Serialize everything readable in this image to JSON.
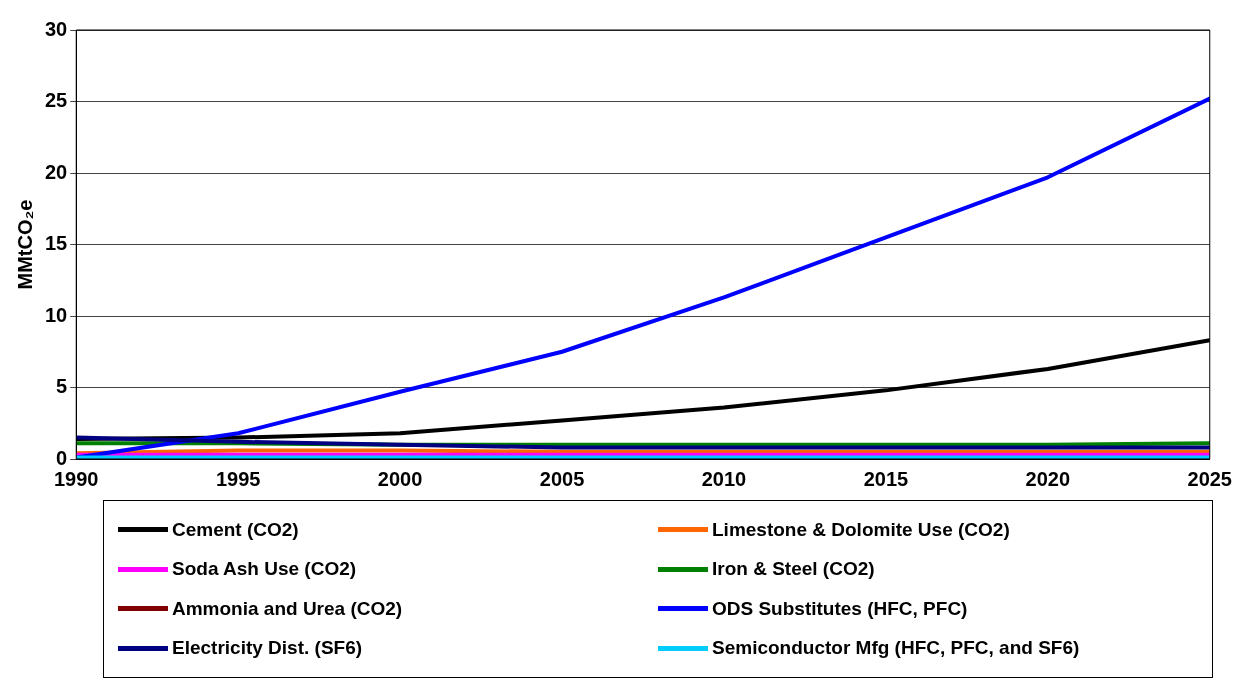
{
  "chart_data": {
    "type": "line",
    "ylabel": "MMtCO₂e",
    "x": [
      1990,
      1995,
      2000,
      2005,
      2010,
      2015,
      2020,
      2025
    ],
    "xlim": [
      1990,
      2025
    ],
    "xticks": [
      1990,
      1995,
      2000,
      2005,
      2010,
      2015,
      2020,
      2025
    ],
    "ylim": [
      0,
      30
    ],
    "yticks": [
      0,
      5,
      10,
      15,
      20,
      25,
      30
    ],
    "grid": "y",
    "legend": "bottom",
    "marker": "none",
    "line_style": "solid",
    "series": [
      {
        "name": "Cement (CO2)",
        "color": "#000000",
        "values": [
          1.4,
          1.5,
          1.8,
          2.7,
          3.6,
          4.8,
          6.3,
          8.3
        ]
      },
      {
        "name": "Limestone & Dolomite Use (CO2)",
        "color": "#ff6600",
        "values": [
          0.4,
          0.6,
          0.6,
          0.5,
          0.5,
          0.5,
          0.5,
          0.5
        ]
      },
      {
        "name": "Soda Ash Use (CO2)",
        "color": "#ff00ff",
        "values": [
          0.3,
          0.3,
          0.3,
          0.3,
          0.3,
          0.3,
          0.3,
          0.3
        ]
      },
      {
        "name": "Iron & Steel (CO2)",
        "color": "#008000",
        "values": [
          1.1,
          1.1,
          1.0,
          1.0,
          1.0,
          1.0,
          1.0,
          1.1
        ]
      },
      {
        "name": "Ammonia and Urea (CO2)",
        "color": "#800000",
        "values": [
          null,
          null,
          null,
          null,
          null,
          null,
          null,
          null
        ]
      },
      {
        "name": "ODS Substitutes (HFC, PFC)",
        "color": "#0000ff",
        "values": [
          0.1,
          1.8,
          4.7,
          7.5,
          11.3,
          15.5,
          19.7,
          25.2
        ]
      },
      {
        "name": "Electricity Dist. (SF6)",
        "color": "#000080",
        "values": [
          1.5,
          1.2,
          1.0,
          0.8,
          0.8,
          0.8,
          0.8,
          0.8
        ]
      },
      {
        "name": "Semiconductor Mfg (HFC, PFC, and SF6)",
        "color": "#00ccff",
        "values": [
          0.1,
          0.1,
          0.1,
          0.1,
          0.1,
          0.1,
          0.1,
          0.1
        ]
      }
    ]
  }
}
